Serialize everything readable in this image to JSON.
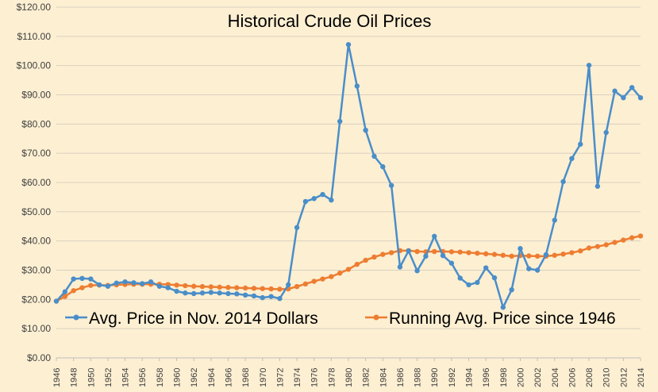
{
  "chart_data": {
    "type": "line",
    "title": "Historical Crude Oil Prices",
    "xlabel": "",
    "ylabel": "",
    "ylim": [
      0,
      120
    ],
    "yticks": [
      "$0.00",
      "$10.00",
      "$20.00",
      "$30.00",
      "$40.00",
      "$50.00",
      "$60.00",
      "$70.00",
      "$80.00",
      "$90.00",
      "$100.00",
      "$110.00",
      "$120.00"
    ],
    "xticks": [
      "1946",
      "1948",
      "1950",
      "1952",
      "1954",
      "1956",
      "1958",
      "1960",
      "1962",
      "1964",
      "1966",
      "1968",
      "1970",
      "1972",
      "1974",
      "1976",
      "1978",
      "1980",
      "1982",
      "1984",
      "1986",
      "1988",
      "1990",
      "1992",
      "1994",
      "1996",
      "1998",
      "2000",
      "2002",
      "2004",
      "2006",
      "2008",
      "2010",
      "2012",
      "2014"
    ],
    "grid": "horizontal",
    "legend_position": "bottom",
    "x": [
      1946,
      1947,
      1948,
      1949,
      1950,
      1951,
      1952,
      1953,
      1954,
      1955,
      1956,
      1957,
      1958,
      1959,
      1960,
      1961,
      1962,
      1963,
      1964,
      1965,
      1966,
      1967,
      1968,
      1969,
      1970,
      1971,
      1972,
      1973,
      1974,
      1975,
      1976,
      1977,
      1978,
      1979,
      1980,
      1981,
      1982,
      1983,
      1984,
      1985,
      1986,
      1987,
      1988,
      1989,
      1990,
      1991,
      1992,
      1993,
      1994,
      1995,
      1996,
      1997,
      1998,
      1999,
      2000,
      2001,
      2002,
      2003,
      2004,
      2005,
      2006,
      2007,
      2008,
      2009,
      2010,
      2011,
      2012,
      2013,
      2014
    ],
    "series": [
      {
        "name": "Avg. Price in Nov. 2014 Dollars",
        "color": "#4a8ec9",
        "values": [
          19.4,
          22.6,
          27.0,
          27.2,
          27.0,
          25.0,
          24.5,
          25.6,
          26.0,
          25.7,
          25.4,
          26.0,
          24.5,
          24.0,
          22.8,
          22.2,
          22.0,
          22.2,
          22.4,
          22.2,
          22.0,
          21.9,
          21.5,
          21.2,
          20.6,
          21.0,
          20.3,
          25.0,
          44.6,
          53.5,
          54.5,
          55.9,
          54.0,
          80.9,
          107.2,
          93.0,
          77.9,
          69.0,
          65.4,
          59.0,
          31.1,
          36.6,
          29.8,
          34.8,
          41.6,
          35.0,
          32.4,
          27.3,
          25.0,
          25.8,
          30.8,
          27.4,
          17.3,
          23.3,
          37.4,
          30.5,
          30.0,
          35.3,
          47.1,
          60.3,
          68.2,
          73.1,
          100.1,
          58.7,
          77.1,
          91.3,
          89.0,
          92.5,
          89.0
        ]
      },
      {
        "name": "Running Avg. Price since 1946",
        "color": "#ed7d31",
        "values": [
          19.4,
          21.0,
          23.0,
          24.0,
          24.8,
          24.9,
          24.8,
          25.0,
          25.1,
          25.2,
          25.2,
          25.2,
          25.2,
          25.1,
          24.9,
          24.7,
          24.5,
          24.4,
          24.3,
          24.2,
          24.1,
          24.0,
          23.9,
          23.8,
          23.7,
          23.6,
          23.5,
          23.6,
          24.4,
          25.3,
          26.2,
          27.0,
          27.8,
          29.0,
          30.3,
          32.0,
          33.4,
          34.5,
          35.4,
          36.0,
          36.7,
          36.7,
          36.4,
          36.3,
          36.4,
          36.4,
          36.3,
          36.2,
          36.0,
          35.8,
          35.6,
          35.4,
          35.1,
          34.8,
          35.0,
          34.9,
          34.8,
          34.8,
          35.1,
          35.5,
          36.0,
          36.6,
          37.6,
          38.1,
          38.7,
          39.5,
          40.3,
          41.1,
          41.7
        ]
      }
    ]
  }
}
